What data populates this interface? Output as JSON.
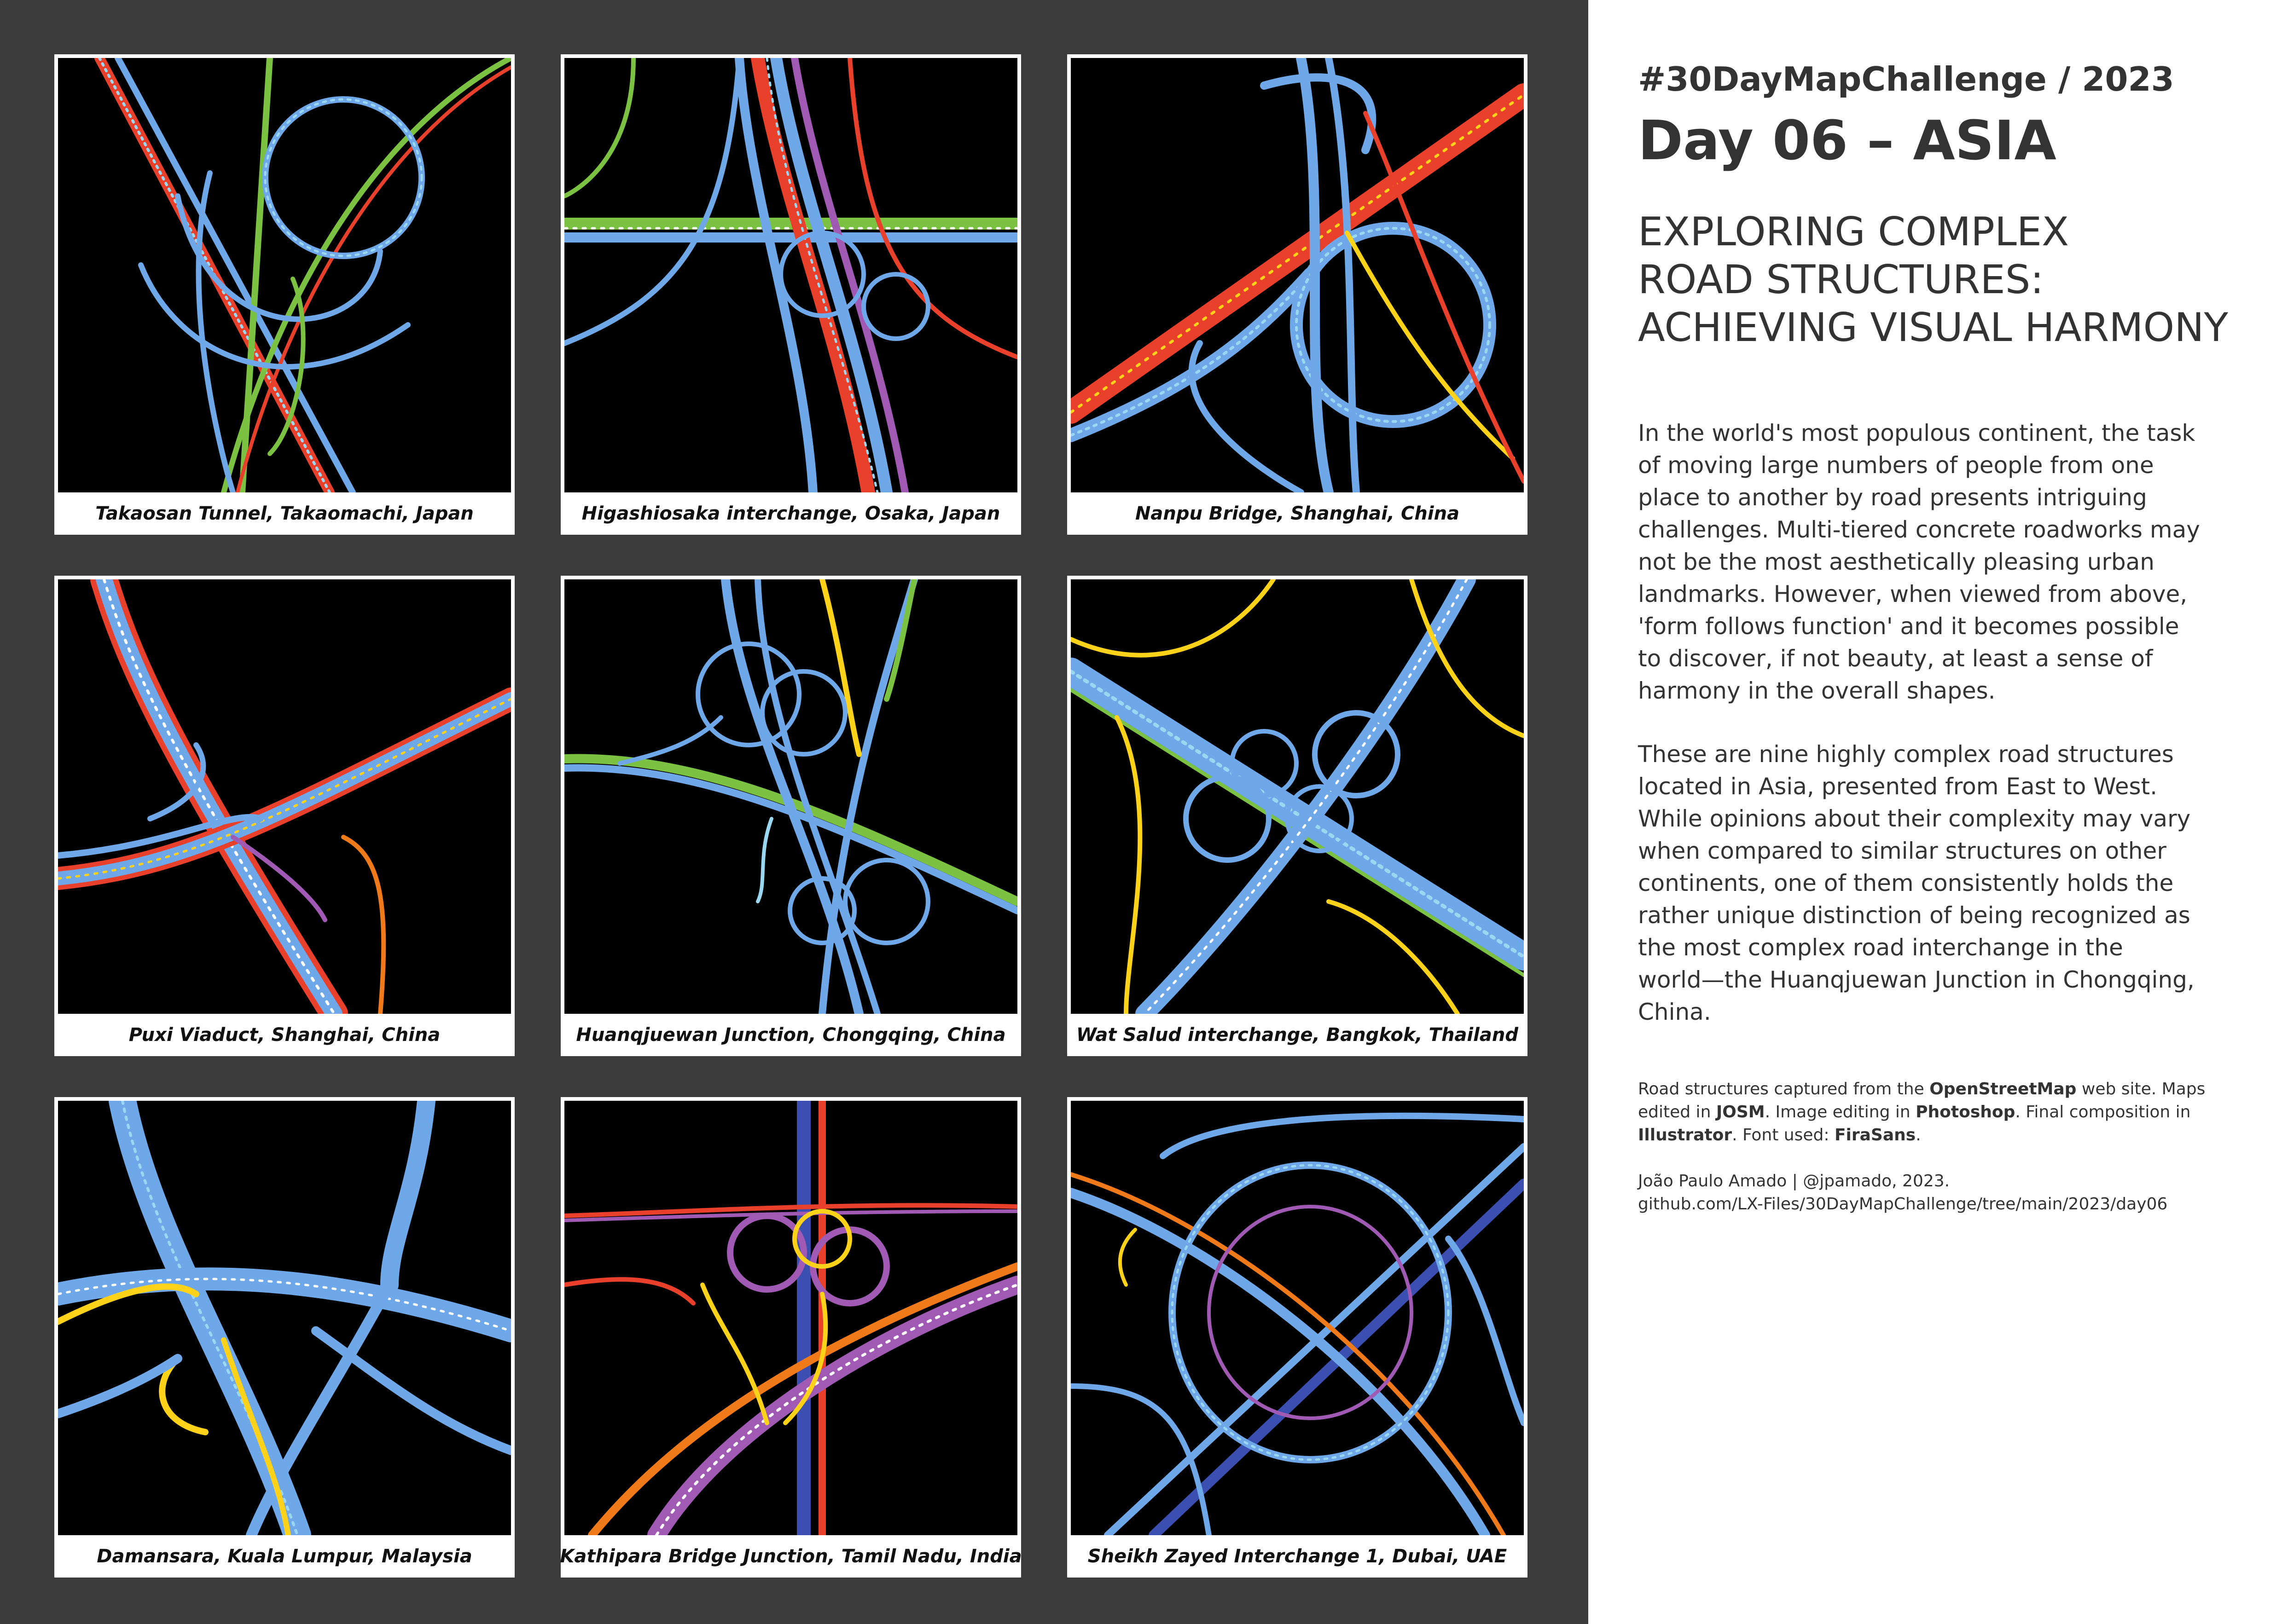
{
  "header": {
    "eyebrow": "#30DayMapChallenge / 2023",
    "title": "Day 06 – ASIA",
    "subtitle_lines": [
      "EXPLORING COMPLEX",
      "ROAD STRUCTURES:",
      "ACHIEVING VISUAL HARMONY"
    ]
  },
  "intro_lines": [
    "In the world's most populous continent, the task",
    "of moving large numbers of people from one",
    "place to another by road presents intriguing",
    "challenges. Multi-tiered concrete roadworks may",
    "not be the most aesthetically pleasing urban",
    "landmarks. However, when viewed from above,",
    "'form follows function' and it becomes possible",
    "to discover, if not beauty, at least a sense of",
    "harmony in the overall shapes."
  ],
  "body_lines": [
    "These are nine highly complex road structures",
    "located in Asia, presented from East to West.",
    "While opinions about their complexity may vary",
    "when compared to similar structures on other",
    "continents, one of them consistently holds the",
    "rather unique distinction of being recognized as",
    "the most complex road interchange in the",
    "world—the Huanqjuewan Junction in Chongqing,",
    "China."
  ],
  "credits": {
    "line1_a": "Road structures captured from the ",
    "line1_b": "OpenStreetMap",
    "line1_c": " web site. Maps",
    "line2_a": "edited in ",
    "line2_b": "JOSM",
    "line2_c": ". Image editing in ",
    "line2_d": "Photoshop",
    "line2_e": ". Final composition in",
    "line3_a": "Illustrator",
    "line3_b": ". Font used: ",
    "line3_c": "FiraSans",
    "line3_d": ".",
    "author": "João Paulo Amado | @jpamado, 2023.",
    "url": "github.com/LX-Files/30DayMapChallenge/tree/main/2023/day06"
  },
  "maps": [
    {
      "caption": "Takaosan Tunnel, Takaomachi, Japan"
    },
    {
      "caption": "Higashiosaka interchange, Osaka, Japan"
    },
    {
      "caption": "Nanpu Bridge, Shanghai, China"
    },
    {
      "caption": "Puxi Viaduct, Shanghai, China"
    },
    {
      "caption": "Huanqjuewan Junction, Chongqing, China"
    },
    {
      "caption": "Wat Salud interchange, Bangkok, Thailand"
    },
    {
      "caption": "Damansara, Kuala Lumpur, Malaysia"
    },
    {
      "caption": "Kathipara Bridge Junction, Tamil Nadu, India"
    },
    {
      "caption": "Sheikh Zayed Interchange 1, Dubai, UAE"
    }
  ],
  "colors": {
    "panel": "#3b3b3b",
    "map_background": "#000000",
    "road_blue": "#6fa8e8",
    "road_light_blue": "#9ad7f0",
    "road_red": "#e8402a",
    "road_orange": "#f07a1a",
    "road_yellow": "#ffd21a",
    "road_green": "#7cc242",
    "road_purple": "#a05ab4",
    "road_dark_blue": "#3a4fb0"
  }
}
